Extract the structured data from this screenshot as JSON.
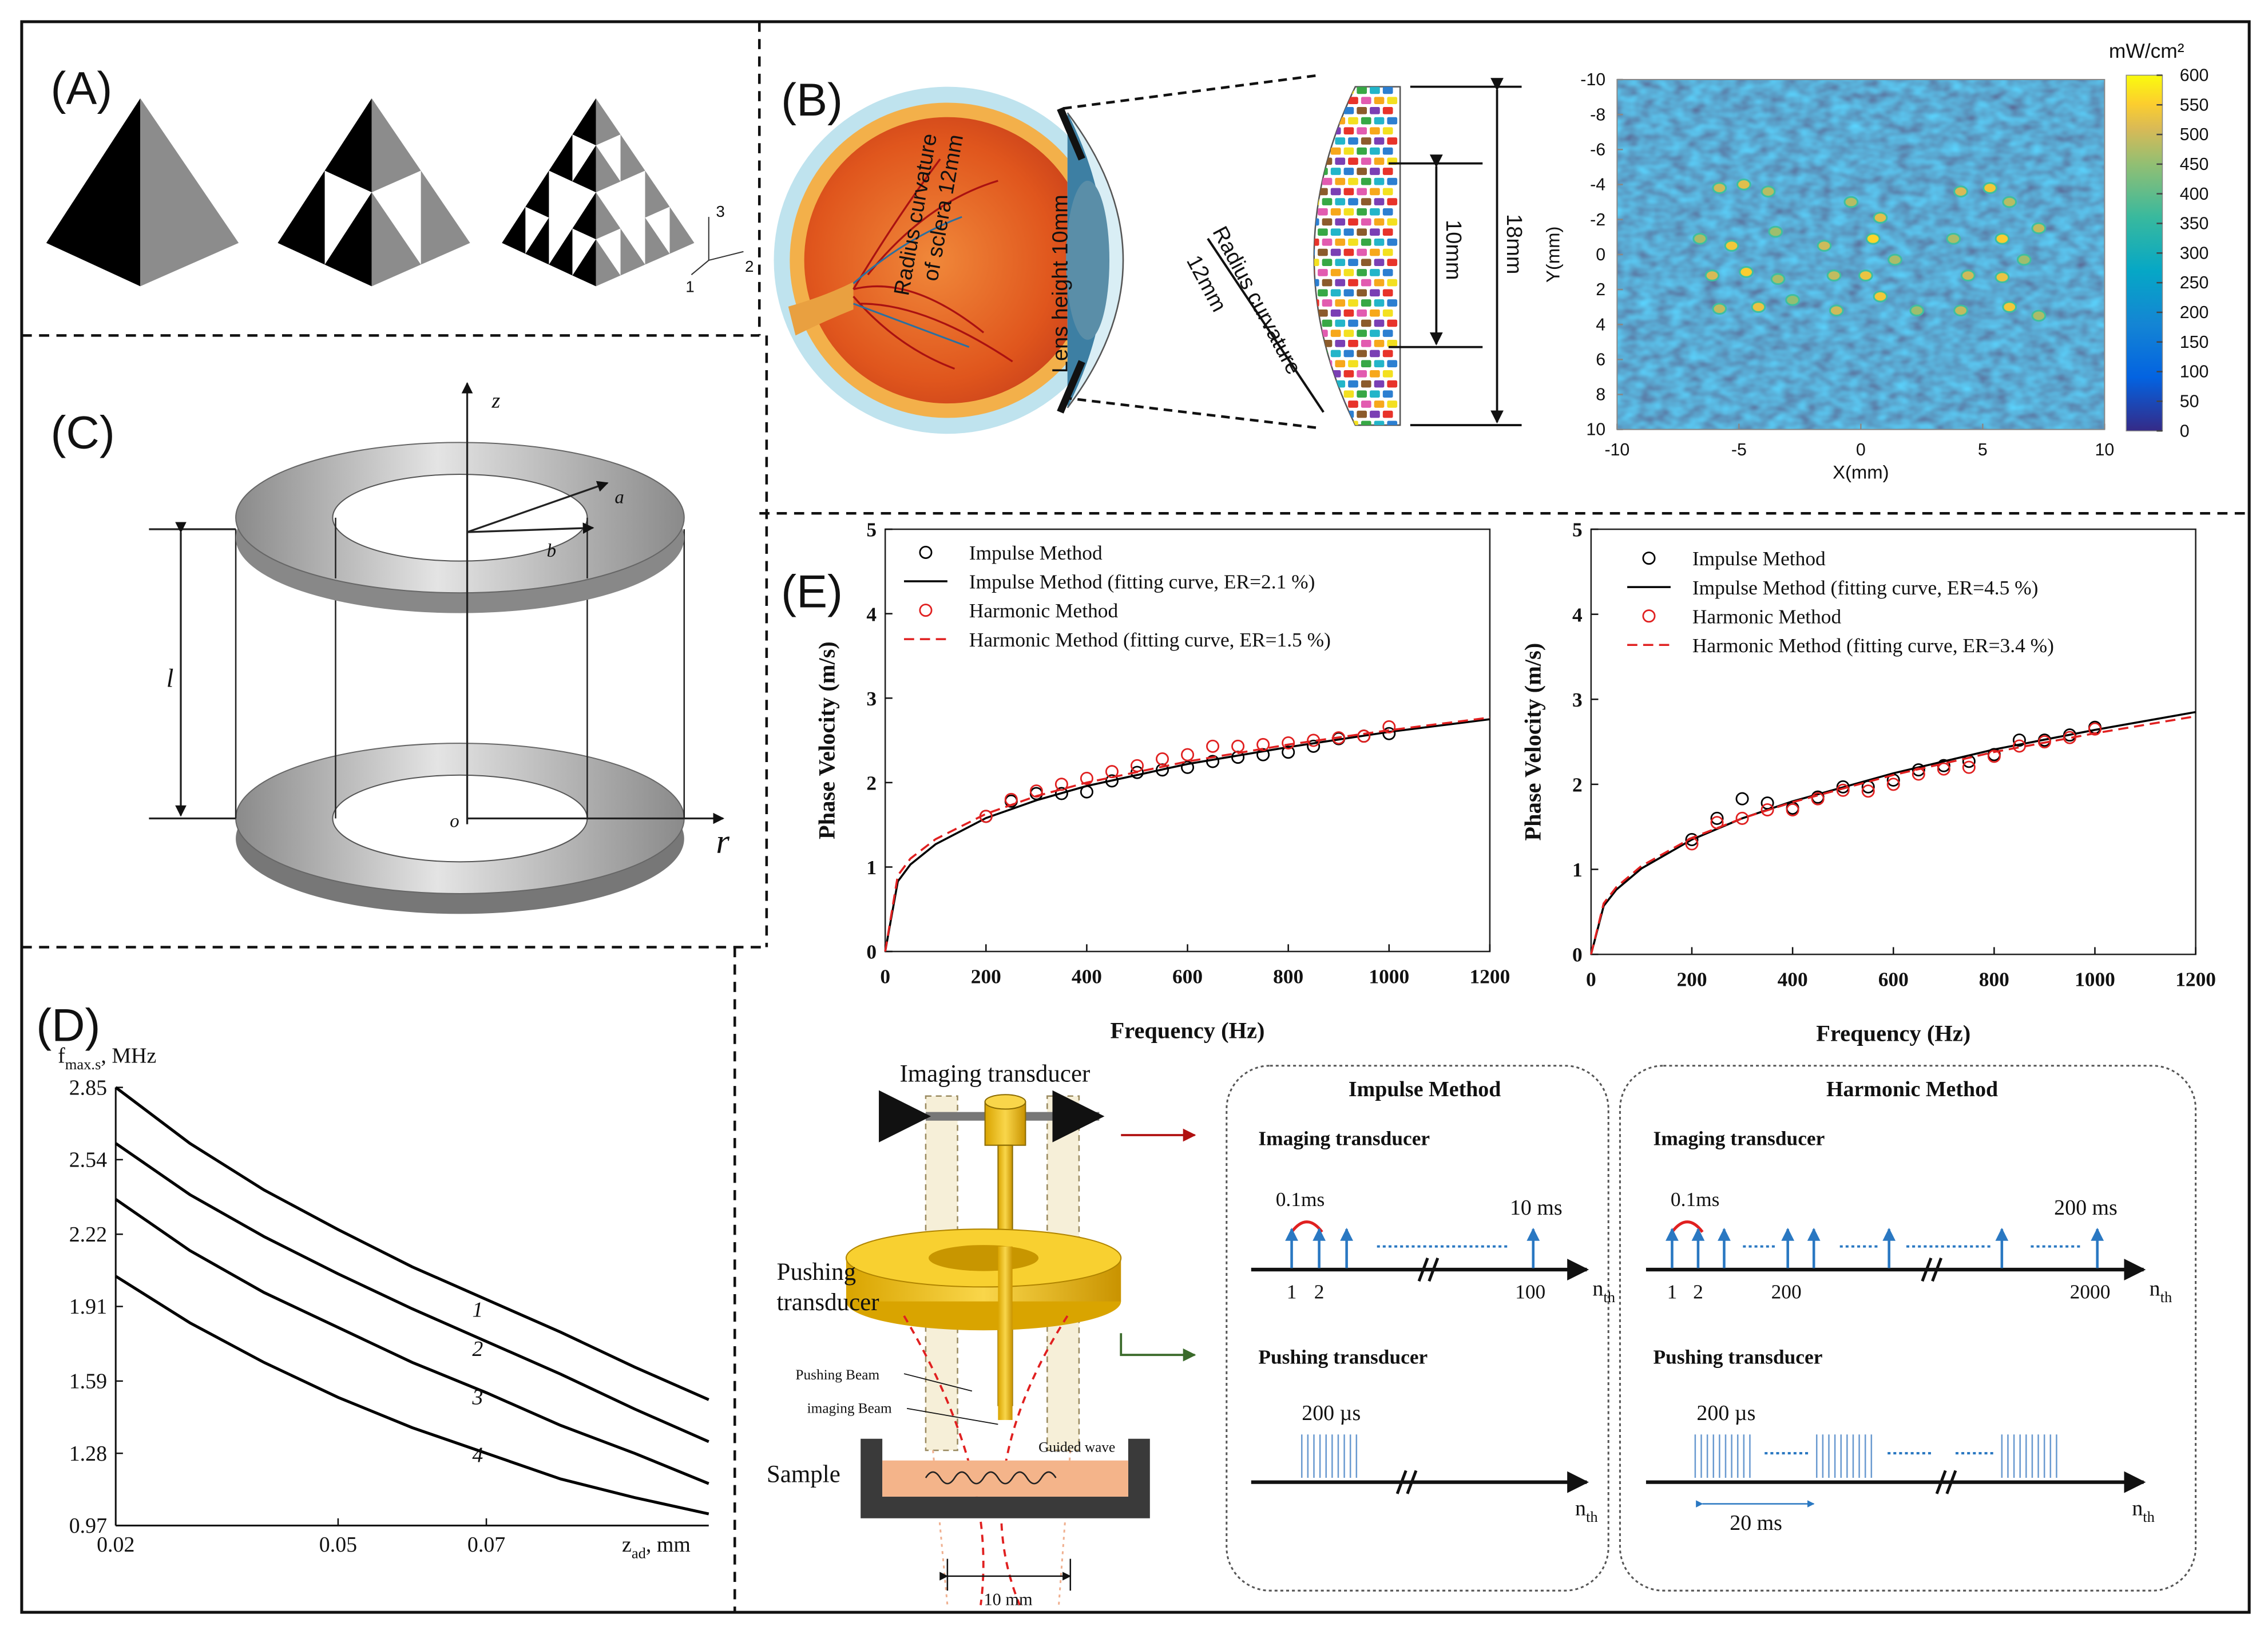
{
  "panels": {
    "A": {
      "label": "(A)",
      "axes": [
        "1",
        "2",
        "3"
      ]
    },
    "B": {
      "label": "(B)",
      "eye": {
        "sclera_line1": "Radius curvature",
        "sclera_line2": "of sclera 12mm",
        "lens": "Lens height 10mm",
        "array_line1": "Radius curvature",
        "array_line2": "12mm",
        "inner_size": "10mm",
        "outer_size": "18mm"
      }
    },
    "C": {
      "label": "(C)",
      "symbols": {
        "z": "z",
        "a": "a",
        "b": "b",
        "l": "l",
        "o": "o",
        "r": "r"
      }
    },
    "D": {
      "label": "(D)"
    },
    "E": {
      "label": "(E)",
      "setup": {
        "imaging_transducer": "Imaging transducer",
        "pushing_transducer": [
          "Pushing",
          "transducer"
        ],
        "pushing_beam": "Pushing Beam",
        "imaging_beam": "imaging Beam",
        "guided_wave": "Guided wave",
        "sample": "Sample",
        "spacing": "10 mm"
      },
      "impulse_method": {
        "title": "Impulse Method",
        "imaging_label": "Imaging transducer",
        "interval": "0.1ms",
        "duration": "10 ms",
        "pulse_labels": [
          "1",
          "2",
          "100"
        ],
        "axis": [
          "n",
          "th"
        ],
        "pushing_label": "Pushing transducer",
        "pulse_width": "200 µs",
        "axis2": [
          "n",
          "th"
        ]
      },
      "harmonic_method": {
        "title": "Harmonic Method",
        "imaging_label": "Imaging transducer",
        "interval": "0.1ms",
        "duration": "200 ms",
        "pulse_labels": [
          "1",
          "2",
          "200",
          "2000"
        ],
        "axis": [
          "n",
          "th"
        ],
        "pushing_label": "Pushing transducer",
        "pulse_width": "200 µs",
        "period": "20 ms",
        "axis2": [
          "n",
          "th"
        ]
      }
    }
  },
  "chart_data": [
    {
      "type": "heatmap",
      "xlabel": "X(mm)",
      "ylabel": "Y(mm)",
      "xlim": [
        -10,
        10
      ],
      "ylim": [
        -10,
        10
      ],
      "y_inverted": true,
      "xticks": [
        -10,
        -5,
        0,
        5,
        10
      ],
      "yticks": [
        -10,
        -8,
        -6,
        -4,
        -2,
        0,
        2,
        4,
        6,
        8,
        10
      ],
      "colorbar": {
        "title": "mW/cm²",
        "lim": [
          0,
          600
        ],
        "ticks": [
          0,
          50,
          100,
          150,
          200,
          250,
          300,
          350,
          400,
          450,
          500,
          550,
          600
        ]
      },
      "hotspots": {
        "x": [
          -5.8,
          -4.8,
          -3.8,
          -6.6,
          -5.3,
          -3.5,
          -6.1,
          -4.7,
          -3.4,
          -5.8,
          -4.2,
          -2.8,
          -0.4,
          0.8,
          -1.5,
          0.5,
          -1.1,
          0.2,
          1.4,
          -1.0,
          0.8,
          2.3,
          4.1,
          5.3,
          6.1,
          3.8,
          5.8,
          7.3,
          4.4,
          5.8,
          6.7,
          4.1,
          6.1,
          7.3
        ],
        "y": [
          -3.8,
          -4.0,
          -3.6,
          -0.9,
          -0.5,
          -1.3,
          1.2,
          1.0,
          1.4,
          3.1,
          3.0,
          2.6,
          -3.0,
          -2.1,
          -0.5,
          -0.9,
          1.2,
          1.2,
          0.3,
          3.2,
          2.4,
          3.2,
          -3.6,
          -3.8,
          -3.0,
          -0.9,
          -0.9,
          -1.5,
          1.2,
          1.3,
          0.3,
          3.2,
          3.0,
          3.5
        ],
        "values": [
          500,
          520,
          480,
          470,
          540,
          460,
          510,
          550,
          470,
          490,
          530,
          450,
          480,
          520,
          500,
          560,
          490,
          530,
          470,
          500,
          540,
          460,
          510,
          540,
          480,
          470,
          550,
          490,
          500,
          530,
          460,
          490,
          540,
          470
        ]
      }
    },
    {
      "type": "line",
      "xlabel": [
        "z",
        "ad",
        ", mm"
      ],
      "ylabel": [
        "f",
        "max.s",
        ", MHz"
      ],
      "xlim": [
        0.02,
        0.1
      ],
      "ylim": [
        0.97,
        2.85
      ],
      "xticks": [
        0.02,
        0.05,
        0.07
      ],
      "yticks": [
        0.97,
        1.28,
        1.59,
        1.91,
        2.22,
        2.54,
        2.85
      ],
      "x": [
        0.02,
        0.03,
        0.04,
        0.05,
        0.06,
        0.07,
        0.08,
        0.09,
        0.1
      ],
      "series": [
        {
          "name": "1",
          "color": "#000000",
          "values": [
            2.85,
            2.61,
            2.41,
            2.24,
            2.08,
            1.94,
            1.8,
            1.65,
            1.51
          ]
        },
        {
          "name": "2",
          "color": "#000000",
          "values": [
            2.61,
            2.39,
            2.21,
            2.05,
            1.9,
            1.76,
            1.62,
            1.47,
            1.33
          ]
        },
        {
          "name": "3",
          "color": "#000000",
          "values": [
            2.37,
            2.15,
            1.97,
            1.82,
            1.67,
            1.54,
            1.4,
            1.28,
            1.15
          ]
        },
        {
          "name": "4",
          "color": "#000000",
          "values": [
            2.04,
            1.84,
            1.67,
            1.52,
            1.39,
            1.28,
            1.17,
            1.09,
            1.02
          ]
        }
      ]
    },
    {
      "type": "scatter",
      "xlabel": "Frequency (Hz)",
      "ylabel": "Phase Velocity (m/s)",
      "xlim": [
        0,
        1200
      ],
      "ylim": [
        0,
        5
      ],
      "xticks": [
        0,
        200,
        400,
        600,
        800,
        1000,
        1200
      ],
      "yticks": [
        0,
        1,
        2,
        3,
        4,
        5
      ],
      "series": [
        {
          "name": "Impulse Method",
          "color": "#000000",
          "mode": "markers",
          "x": [
            200,
            250,
            300,
            350,
            400,
            450,
            500,
            550,
            600,
            650,
            700,
            750,
            800,
            850,
            900,
            950,
            1000
          ],
          "values": [
            1.6,
            1.78,
            1.87,
            1.87,
            1.89,
            2.02,
            2.12,
            2.15,
            2.18,
            2.25,
            2.3,
            2.33,
            2.36,
            2.43,
            2.52,
            2.55,
            2.58
          ]
        },
        {
          "name": "Impulse Method (fitting curve, ER=2.1 %)",
          "color": "#000000",
          "mode": "line",
          "x": [
            0,
            25,
            50,
            100,
            200,
            300,
            400,
            600,
            800,
            1000,
            1200
          ],
          "values": [
            0,
            0.83,
            1.03,
            1.27,
            1.58,
            1.79,
            1.96,
            2.22,
            2.42,
            2.6,
            2.75
          ]
        },
        {
          "name": "Harmonic Method",
          "color": "#e02020",
          "mode": "markers",
          "x": [
            200,
            250,
            300,
            350,
            400,
            450,
            500,
            550,
            600,
            650,
            700,
            750,
            800,
            850,
            900,
            950,
            1000
          ],
          "values": [
            1.6,
            1.8,
            1.9,
            1.98,
            2.05,
            2.13,
            2.2,
            2.28,
            2.33,
            2.43,
            2.43,
            2.45,
            2.47,
            2.5,
            2.53,
            2.55,
            2.66
          ]
        },
        {
          "name": "Harmonic Method (fitting curve, ER=1.5 %)",
          "color": "#e02020",
          "mode": "dashed",
          "x": [
            0,
            25,
            50,
            100,
            200,
            300,
            400,
            600,
            800,
            1000,
            1200
          ],
          "values": [
            0,
            0.9,
            1.1,
            1.33,
            1.63,
            1.84,
            2.0,
            2.25,
            2.45,
            2.62,
            2.77
          ]
        }
      ]
    },
    {
      "type": "scatter",
      "xlabel": "Frequency (Hz)",
      "ylabel": "Phase Velocity (m/s)",
      "xlim": [
        0,
        1200
      ],
      "ylim": [
        0,
        5
      ],
      "xticks": [
        0,
        200,
        400,
        600,
        800,
        1000,
        1200
      ],
      "yticks": [
        0,
        1,
        2,
        3,
        4,
        5
      ],
      "series": [
        {
          "name": "Impulse Method",
          "color": "#000000",
          "mode": "markers",
          "x": [
            200,
            250,
            300,
            350,
            400,
            450,
            500,
            550,
            600,
            650,
            700,
            750,
            800,
            850,
            900,
            950,
            1000
          ],
          "values": [
            1.35,
            1.6,
            1.83,
            1.78,
            1.72,
            1.85,
            1.97,
            1.97,
            2.05,
            2.17,
            2.22,
            2.27,
            2.35,
            2.52,
            2.52,
            2.58,
            2.67
          ]
        },
        {
          "name": "Impulse Method (fitting curve, ER=4.5 %)",
          "color": "#000000",
          "mode": "line",
          "x": [
            0,
            25,
            50,
            100,
            200,
            300,
            400,
            600,
            800,
            1000,
            1200
          ],
          "values": [
            0,
            0.57,
            0.76,
            1.01,
            1.35,
            1.6,
            1.8,
            2.13,
            2.41,
            2.64,
            2.85
          ]
        },
        {
          "name": "Harmonic Method",
          "color": "#e02020",
          "mode": "markers",
          "x": [
            200,
            250,
            300,
            350,
            400,
            450,
            500,
            550,
            600,
            650,
            700,
            750,
            800,
            850,
            900,
            950,
            1000
          ],
          "values": [
            1.3,
            1.55,
            1.6,
            1.7,
            1.7,
            1.83,
            1.93,
            1.92,
            2.0,
            2.12,
            2.18,
            2.2,
            2.33,
            2.45,
            2.5,
            2.55,
            2.65
          ]
        },
        {
          "name": "Harmonic Method (fitting curve, ER=3.4 %)",
          "color": "#e02020",
          "mode": "dashed",
          "x": [
            0,
            25,
            50,
            100,
            200,
            300,
            400,
            600,
            800,
            1000,
            1200
          ],
          "values": [
            0,
            0.6,
            0.79,
            1.04,
            1.37,
            1.6,
            1.79,
            2.11,
            2.38,
            2.6,
            2.8
          ]
        }
      ]
    }
  ]
}
